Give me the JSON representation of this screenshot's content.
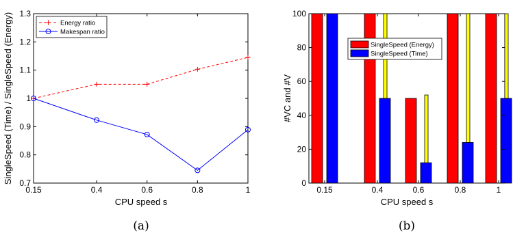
{
  "chart_data": [
    {
      "type": "line",
      "xlabel": "CPU speed s",
      "ylabel": "SingleSpeed (Time) / SingleSpeed (Energy)",
      "caption": "(a)",
      "x": [
        0.15,
        0.4,
        0.6,
        0.8,
        1
      ],
      "x_ticks": [
        "0.15",
        "0.4",
        "0.6",
        "0.8",
        "1"
      ],
      "xlim": [
        0.15,
        1
      ],
      "ylim": [
        0.7,
        1.3
      ],
      "y_ticks": [
        "0.7",
        "0.8",
        "0.9",
        "1",
        "1.1",
        "1.2",
        "1.3"
      ],
      "legend_position": "top-left",
      "series": [
        {
          "name": "Energy ratio",
          "values": [
            1.0,
            1.05,
            1.05,
            1.103,
            1.145
          ],
          "color": "#ff0000",
          "style": "dashed",
          "marker": "plus"
        },
        {
          "name": "Makespan ratio",
          "values": [
            1.0,
            0.923,
            0.872,
            0.745,
            0.889
          ],
          "color": "#0000ff",
          "style": "solid",
          "marker": "circle"
        }
      ]
    },
    {
      "type": "bar",
      "xlabel": "CPU speed s",
      "ylabel": "#VC and #V",
      "caption": "(b)",
      "categories": [
        "0.15",
        "0.4",
        "0.6",
        "0.8",
        "1"
      ],
      "ylim": [
        0,
        100
      ],
      "y_ticks": [
        "0",
        "20",
        "40",
        "60",
        "80",
        "100"
      ],
      "legend_position": "upper-middle",
      "series": [
        {
          "name": "SingleSpeed (Energy)",
          "values": [
            100,
            100,
            50,
            100,
            100
          ],
          "color": "#ff0000"
        },
        {
          "name": "SingleSpeed (Time)",
          "values": [
            100,
            50,
            12,
            24,
            50
          ],
          "color": "#0000ff"
        },
        {
          "values": [
            null,
            100,
            52,
            100,
            100
          ],
          "color": "#ffff00"
        }
      ]
    }
  ]
}
